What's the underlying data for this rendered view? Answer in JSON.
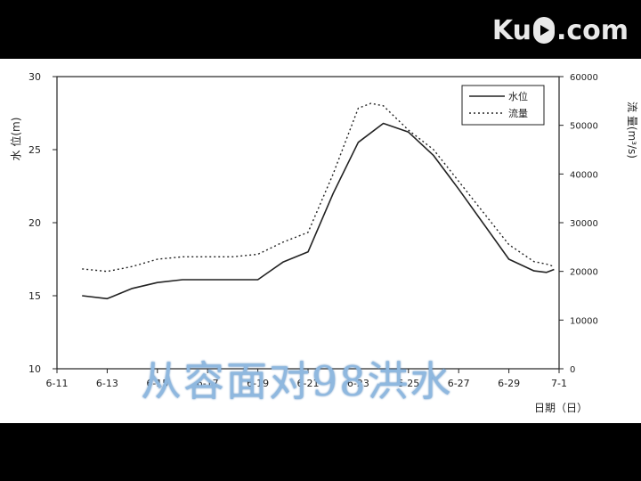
{
  "logo": {
    "left_text": "Ku",
    "right_text": ".com",
    "icon": "play-icon"
  },
  "overlay_caption": "从容面对98洪水",
  "colors": {
    "frame": "#ffffff",
    "ink": "#222222",
    "caption": "#8fb8df"
  },
  "chart_data": {
    "type": "line",
    "title": "",
    "xlabel": "日期（日）",
    "ylabel_left": "水 位(m)",
    "ylabel_right": "流 量(m³/s)",
    "x_tick_labels": [
      "6-11",
      "6-13",
      "6-15",
      "6-17",
      "6-19",
      "6-21",
      "6-23",
      "6-25",
      "6-27",
      "6-29",
      "7-1"
    ],
    "x_range": [
      0,
      20
    ],
    "y_left_ticks": [
      "10",
      "15",
      "20",
      "25",
      "30"
    ],
    "y_left_range": [
      10,
      30
    ],
    "y_right_ticks": [
      "0",
      "10000",
      "20000",
      "30000",
      "40000",
      "50000",
      "60000"
    ],
    "y_right_range": [
      0,
      60000
    ],
    "grid": false,
    "legend_position": "top-right",
    "series": [
      {
        "name": "水位",
        "axis": "left",
        "style": "solid",
        "x": [
          1,
          2,
          3,
          4,
          5,
          6,
          7,
          8,
          8.5,
          9,
          10,
          11,
          12,
          13,
          14,
          15,
          16,
          17,
          18,
          19,
          19.5,
          19.8
        ],
        "values": [
          15.0,
          14.8,
          15.5,
          15.9,
          16.1,
          16.1,
          16.1,
          16.1,
          16.7,
          17.3,
          18.0,
          22.0,
          25.5,
          26.8,
          26.2,
          24.6,
          22.3,
          19.9,
          17.5,
          16.7,
          16.6,
          16.8
        ]
      },
      {
        "name": "流量",
        "axis": "right",
        "style": "dotted",
        "x": [
          1,
          2,
          3,
          4,
          5,
          6,
          7,
          8,
          9,
          10,
          11,
          12,
          12.5,
          13,
          14,
          15,
          16,
          17,
          18,
          19,
          19.5,
          19.8
        ],
        "values": [
          20500,
          20000,
          21000,
          22500,
          23000,
          23000,
          23000,
          23500,
          26000,
          28000,
          40000,
          53500,
          54500,
          54000,
          49000,
          45000,
          38500,
          32000,
          25500,
          22000,
          21500,
          21000
        ]
      }
    ]
  }
}
